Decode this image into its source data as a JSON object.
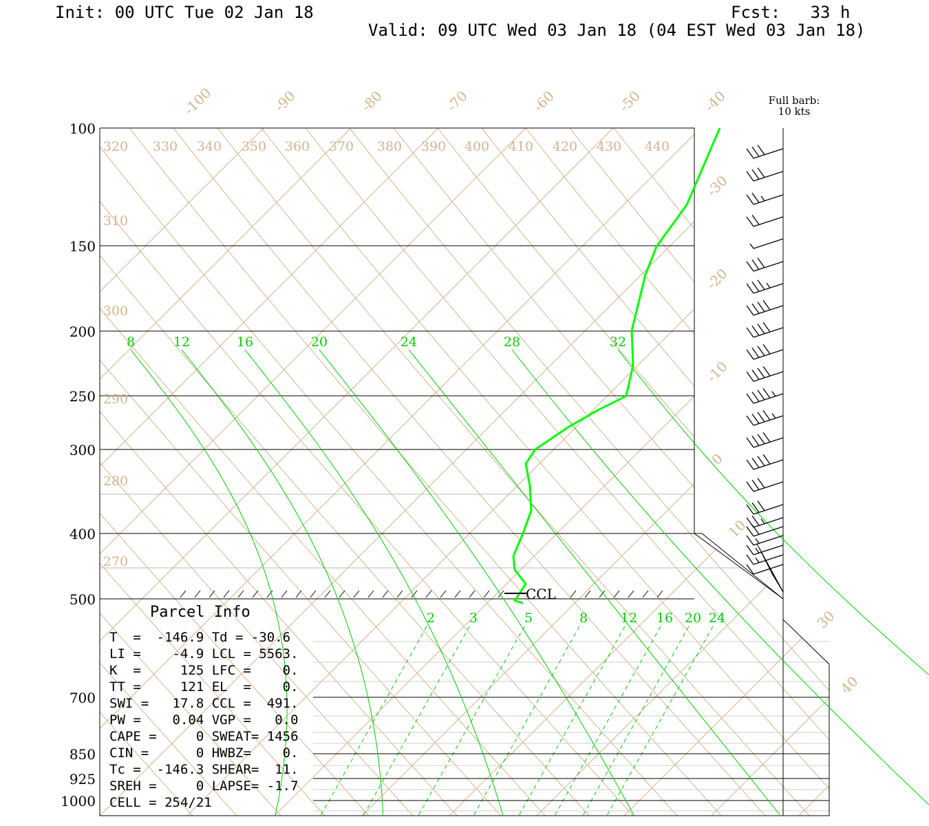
{
  "header": {
    "init": "Init: 00 UTC Tue 02 Jan 18",
    "fcst": "Fcst:   33 h",
    "valid": "Valid: 09 UTC Wed 03 Jan 18 (04 EST Wed 03 Jan 18)"
  },
  "barb_legend": {
    "line1": "Full barb:",
    "line2": "10 kts"
  },
  "parcel_info": {
    "title": "Parcel Info",
    "rows": [
      "T  =  -146.9 Td = -30.6",
      "LI =    -4.9 LCL = 5563.",
      "K  =     125 LFC =    0.",
      "TT =     121 EL  =    0.",
      "SWI =   17.8 CCL =  491.",
      "PW =    0.04 VGP =   0.0",
      "CAPE =     0 SWEAT= 1456",
      "CIN =      0 HWBZ=    0.",
      "Tc =  -146.3 SHEAR=  11.",
      "SREH =     0 LAPSE= -1.7",
      "CELL = 254/21"
    ]
  },
  "ccl_label": "CCL",
  "colors": {
    "background": "#ffffff",
    "grid": "#d2b48c",
    "dewpoint": "#00ff00",
    "mixing": "#00cc00",
    "frame": "#000000"
  },
  "chart_data": {
    "type": "line",
    "title": "",
    "pressure_levels": [
      100,
      150,
      200,
      250,
      300,
      400,
      500,
      700,
      850,
      925,
      1000
    ],
    "temperature_labels": [
      -100,
      -90,
      -80,
      -70,
      -60,
      -50,
      -40,
      -30,
      -20,
      -10,
      0,
      10,
      30,
      40
    ],
    "theta_labels": [
      320,
      330,
      340,
      350,
      360,
      370,
      380,
      390,
      400,
      410,
      420,
      430,
      440,
      310,
      300,
      290,
      280,
      270
    ],
    "upper_mixing_ratio_labels": [
      8,
      12,
      16,
      20,
      24,
      28,
      32
    ],
    "lower_mixing_ratio_labels": [
      2,
      3,
      5,
      8,
      12,
      16,
      20,
      24
    ],
    "series": [
      {
        "color": "#00ff00",
        "points": [
          {
            "p": 100,
            "t": -44.9
          },
          {
            "p": 130,
            "t": -50.3
          },
          {
            "p": 150,
            "t": -54.3
          },
          {
            "p": 165,
            "t": -55.6
          },
          {
            "p": 200,
            "t": -57.2
          },
          {
            "p": 225,
            "t": -57.1
          },
          {
            "p": 250,
            "t": -57.3
          },
          {
            "p": 262,
            "t": -58.2
          },
          {
            "p": 278,
            "t": -64.9
          },
          {
            "p": 300,
            "t": -73.4
          },
          {
            "p": 315,
            "t": -77.0
          },
          {
            "p": 340,
            "t": -76.8
          },
          {
            "p": 370,
            "t": -74.1
          },
          {
            "p": 400,
            "t": -72.3
          },
          {
            "p": 420,
            "t": -74.0
          },
          {
            "p": 440,
            "t": -75.8
          },
          {
            "p": 460,
            "t": -73.2
          },
          {
            "p": 480,
            "t": -74.8
          },
          {
            "p": 491,
            "t": -73.7
          }
        ]
      }
    ],
    "wind_barbs_kts": [
      {
        "p": 110,
        "speed": 30
      },
      {
        "p": 120,
        "speed": 30
      },
      {
        "p": 131,
        "speed": 25
      },
      {
        "p": 142,
        "speed": 20
      },
      {
        "p": 153,
        "speed": 5
      },
      {
        "p": 165,
        "speed": 30
      },
      {
        "p": 178,
        "speed": 35
      },
      {
        "p": 191,
        "speed": 40
      },
      {
        "p": 205,
        "speed": 40
      },
      {
        "p": 220,
        "speed": 40
      },
      {
        "p": 236,
        "speed": 40
      },
      {
        "p": 253,
        "speed": 45
      },
      {
        "p": 270,
        "speed": 45
      },
      {
        "p": 290,
        "speed": 40
      },
      {
        "p": 310,
        "speed": 40
      },
      {
        "p": 332,
        "speed": 30
      },
      {
        "p": 355,
        "speed": 30
      },
      {
        "p": 380,
        "speed": 25
      },
      {
        "p": 405,
        "speed": 20
      },
      {
        "p": 430,
        "speed": 15
      },
      {
        "p": 455,
        "speed": 15
      },
      {
        "p": 480,
        "speed": 15
      },
      {
        "p": 500,
        "speed": 10
      }
    ]
  }
}
